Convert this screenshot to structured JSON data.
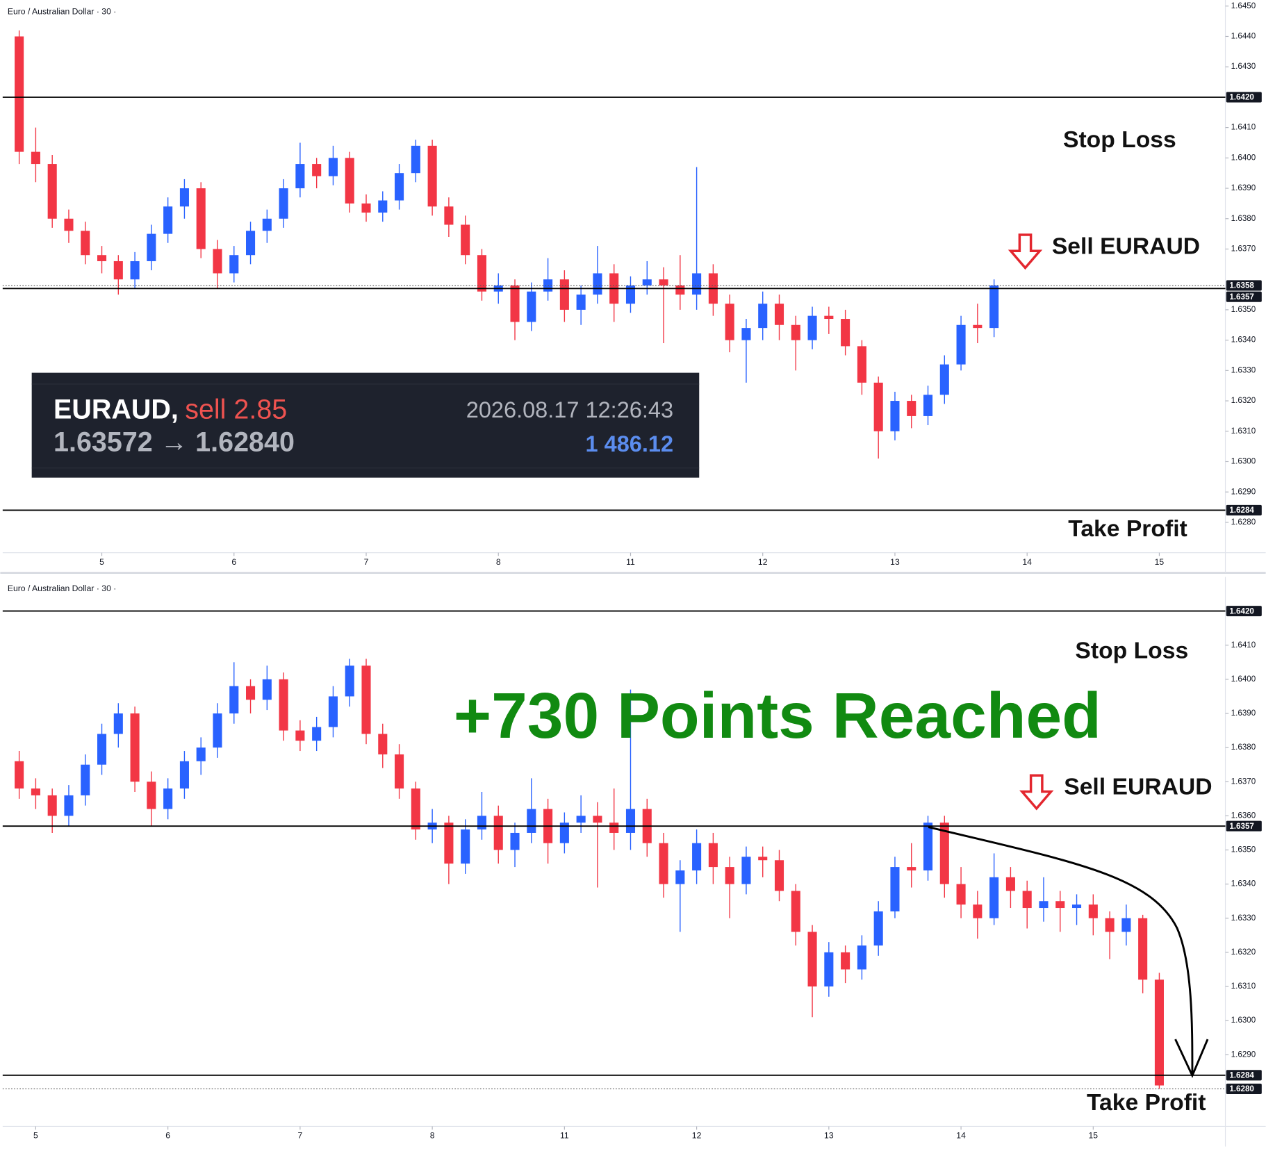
{
  "chart_data": [
    {
      "type": "candlestick",
      "title": "Euro / Australian Dollar · 30 ·",
      "up_color": "#2962ff",
      "down_color": "#f23645",
      "grid": false,
      "xlim": [
        0,
        74
      ],
      "ylim": [
        1.627,
        1.6452
      ],
      "xticks": [
        {
          "value": 6,
          "label": "5"
        },
        {
          "value": 14,
          "label": "6"
        },
        {
          "value": 22,
          "label": "7"
        },
        {
          "value": 30,
          "label": "8"
        },
        {
          "value": 38,
          "label": "11"
        },
        {
          "value": 46,
          "label": "12"
        },
        {
          "value": 54,
          "label": "13"
        },
        {
          "value": 62,
          "label": "14"
        },
        {
          "value": 70,
          "label": "15"
        }
      ],
      "yticks": [
        {
          "value": 1.645,
          "label": "1.6450"
        },
        {
          "value": 1.644,
          "label": "1.6440"
        },
        {
          "value": 1.643,
          "label": "1.6430"
        },
        {
          "value": 1.641,
          "label": "1.6410"
        },
        {
          "value": 1.64,
          "label": "1.6400"
        },
        {
          "value": 1.639,
          "label": "1.6390"
        },
        {
          "value": 1.638,
          "label": "1.6380"
        },
        {
          "value": 1.637,
          "label": "1.6370"
        },
        {
          "value": 1.635,
          "label": "1.6350"
        },
        {
          "value": 1.634,
          "label": "1.6340"
        },
        {
          "value": 1.633,
          "label": "1.6330"
        },
        {
          "value": 1.632,
          "label": "1.6320"
        },
        {
          "value": 1.631,
          "label": "1.6310"
        },
        {
          "value": 1.63,
          "label": "1.6300"
        },
        {
          "value": 1.629,
          "label": "1.6290"
        },
        {
          "value": 1.628,
          "label": "1.6280"
        }
      ],
      "levels": [
        {
          "value": 1.642,
          "label": "1.6420",
          "style": "solid"
        },
        {
          "value": 1.6358,
          "label": "1.6358",
          "style": "dotted"
        },
        {
          "value": 1.6357,
          "label": "1.6357",
          "style": "solid"
        },
        {
          "value": 1.6284,
          "label": "1.6284",
          "style": "solid"
        }
      ],
      "stop_loss_label": "Stop Loss",
      "sell_label": "Sell EURAUD",
      "take_profit_label": "Take Profit",
      "trade_panel": {
        "symbol": "EURAUD,",
        "side": "sell 2.85",
        "time": "2026.08.17 12:26:43",
        "prices": "1.63572 → 1.62840",
        "profit": "1 486.12"
      },
      "x": [
        1,
        2,
        3,
        4,
        5,
        6,
        7,
        8,
        9,
        10,
        11,
        12,
        13,
        14,
        15,
        16,
        17,
        18,
        19,
        20,
        21,
        22,
        23,
        24,
        25,
        26,
        27,
        28,
        29,
        30,
        31,
        32,
        33,
        34,
        35,
        36,
        37,
        38,
        39,
        40,
        41,
        42,
        43,
        44,
        45,
        46,
        47,
        48,
        49,
        50,
        51,
        52,
        53,
        54,
        55,
        56,
        57,
        58,
        59,
        60
      ],
      "open": [
        1.644,
        1.6402,
        1.6398,
        1.638,
        1.6376,
        1.6368,
        1.6366,
        1.636,
        1.6366,
        1.6375,
        1.6384,
        1.639,
        1.637,
        1.6362,
        1.6368,
        1.6376,
        1.638,
        1.639,
        1.6398,
        1.6394,
        1.64,
        1.6385,
        1.6382,
        1.6386,
        1.6395,
        1.6404,
        1.6384,
        1.6378,
        1.6368,
        1.6356,
        1.6358,
        1.6346,
        1.6356,
        1.636,
        1.635,
        1.6355,
        1.6362,
        1.6352,
        1.6358,
        1.636,
        1.6358,
        1.6355,
        1.6362,
        1.6352,
        1.634,
        1.6344,
        1.6352,
        1.6345,
        1.634,
        1.6348,
        1.6347,
        1.6338,
        1.6326,
        1.631,
        1.632,
        1.6315,
        1.6322,
        1.6332,
        1.6345,
        1.6344
      ],
      "high": [
        1.6442,
        1.641,
        1.6401,
        1.6383,
        1.6379,
        1.6371,
        1.6368,
        1.6369,
        1.6378,
        1.6387,
        1.6393,
        1.6392,
        1.6373,
        1.6371,
        1.6379,
        1.6383,
        1.6393,
        1.6405,
        1.64,
        1.6404,
        1.6402,
        1.6388,
        1.6389,
        1.6398,
        1.6406,
        1.6406,
        1.6387,
        1.6381,
        1.637,
        1.6362,
        1.636,
        1.6359,
        1.6367,
        1.6363,
        1.6358,
        1.6371,
        1.6365,
        1.6361,
        1.6366,
        1.6364,
        1.6368,
        1.6397,
        1.6365,
        1.6355,
        1.6347,
        1.6356,
        1.6355,
        1.6348,
        1.6351,
        1.6351,
        1.635,
        1.634,
        1.6328,
        1.6323,
        1.6322,
        1.6325,
        1.6335,
        1.6348,
        1.6352,
        1.636
      ],
      "low": [
        1.6398,
        1.6392,
        1.6377,
        1.6372,
        1.6365,
        1.6362,
        1.6355,
        1.6357,
        1.6363,
        1.6372,
        1.638,
        1.6367,
        1.6357,
        1.6359,
        1.6365,
        1.6372,
        1.6377,
        1.6387,
        1.639,
        1.6391,
        1.6382,
        1.6379,
        1.6379,
        1.6383,
        1.6392,
        1.6381,
        1.6374,
        1.6365,
        1.6353,
        1.6352,
        1.634,
        1.6343,
        1.6353,
        1.6346,
        1.6345,
        1.6352,
        1.6346,
        1.6349,
        1.6355,
        1.6339,
        1.635,
        1.635,
        1.6348,
        1.6336,
        1.6326,
        1.634,
        1.634,
        1.633,
        1.6337,
        1.6342,
        1.6335,
        1.6322,
        1.6301,
        1.6307,
        1.6311,
        1.6312,
        1.6319,
        1.633,
        1.6339,
        1.6341
      ],
      "close": [
        1.6402,
        1.6398,
        1.638,
        1.6376,
        1.6368,
        1.6366,
        1.636,
        1.6366,
        1.6375,
        1.6384,
        1.639,
        1.637,
        1.6362,
        1.6368,
        1.6376,
        1.638,
        1.639,
        1.6398,
        1.6394,
        1.64,
        1.6385,
        1.6382,
        1.6386,
        1.6395,
        1.6404,
        1.6384,
        1.6378,
        1.6368,
        1.6356,
        1.6358,
        1.6346,
        1.6356,
        1.636,
        1.635,
        1.6355,
        1.6362,
        1.6352,
        1.6358,
        1.636,
        1.6358,
        1.6355,
        1.6362,
        1.6352,
        1.634,
        1.6344,
        1.6352,
        1.6345,
        1.634,
        1.6348,
        1.6347,
        1.6338,
        1.6326,
        1.631,
        1.632,
        1.6315,
        1.6322,
        1.6332,
        1.6345,
        1.6344,
        1.6358
      ]
    },
    {
      "type": "candlestick",
      "title": "Euro / Australian Dollar · 30 ·",
      "up_color": "#2962ff",
      "down_color": "#f23645",
      "grid": false,
      "xlim": [
        0,
        74
      ],
      "ylim": [
        1.6269,
        1.643
      ],
      "xticks": [
        {
          "value": 2,
          "label": "5"
        },
        {
          "value": 10,
          "label": "6"
        },
        {
          "value": 18,
          "label": "7"
        },
        {
          "value": 26,
          "label": "8"
        },
        {
          "value": 34,
          "label": "11"
        },
        {
          "value": 42,
          "label": "12"
        },
        {
          "value": 50,
          "label": "13"
        },
        {
          "value": 58,
          "label": "14"
        },
        {
          "value": 66,
          "label": "15"
        }
      ],
      "yticks": [
        {
          "value": 1.641,
          "label": "1.6410"
        },
        {
          "value": 1.64,
          "label": "1.6400"
        },
        {
          "value": 1.639,
          "label": "1.6390"
        },
        {
          "value": 1.638,
          "label": "1.6380"
        },
        {
          "value": 1.637,
          "label": "1.6370"
        },
        {
          "value": 1.636,
          "label": "1.6360"
        },
        {
          "value": 1.635,
          "label": "1.6350"
        },
        {
          "value": 1.634,
          "label": "1.6340"
        },
        {
          "value": 1.633,
          "label": "1.6330"
        },
        {
          "value": 1.632,
          "label": "1.6320"
        },
        {
          "value": 1.631,
          "label": "1.6310"
        },
        {
          "value": 1.63,
          "label": "1.6300"
        },
        {
          "value": 1.629,
          "label": "1.6290"
        }
      ],
      "levels": [
        {
          "value": 1.642,
          "label": "1.6420",
          "style": "solid"
        },
        {
          "value": 1.6357,
          "label": "1.6357",
          "style": "solid"
        },
        {
          "value": 1.6284,
          "label": "1.6284",
          "style": "solid"
        },
        {
          "value": 1.628,
          "label": "1.6280",
          "style": "dotted"
        }
      ],
      "stop_loss_label": "Stop Loss",
      "sell_label": "Sell EURAUD",
      "take_profit_label": "Take Profit",
      "headline": "+730 Points Reached",
      "headline_color": "#118a11",
      "x": [
        1,
        2,
        3,
        4,
        5,
        6,
        7,
        8,
        9,
        10,
        11,
        12,
        13,
        14,
        15,
        16,
        17,
        18,
        19,
        20,
        21,
        22,
        23,
        24,
        25,
        26,
        27,
        28,
        29,
        30,
        31,
        32,
        33,
        34,
        35,
        36,
        37,
        38,
        39,
        40,
        41,
        42,
        43,
        44,
        45,
        46,
        47,
        48,
        49,
        50,
        51,
        52,
        53,
        54,
        55,
        56,
        57,
        58,
        59,
        60,
        61,
        62,
        63,
        64,
        65,
        66,
        67,
        68,
        69,
        70
      ],
      "open": [
        1.6376,
        1.6368,
        1.6366,
        1.636,
        1.6366,
        1.6375,
        1.6384,
        1.639,
        1.637,
        1.6362,
        1.6368,
        1.6376,
        1.638,
        1.639,
        1.6398,
        1.6394,
        1.64,
        1.6385,
        1.6382,
        1.6386,
        1.6395,
        1.6404,
        1.6384,
        1.6378,
        1.6368,
        1.6356,
        1.6358,
        1.6346,
        1.6356,
        1.636,
        1.635,
        1.6355,
        1.6362,
        1.6352,
        1.6358,
        1.636,
        1.6358,
        1.6355,
        1.6362,
        1.6352,
        1.634,
        1.6344,
        1.6352,
        1.6345,
        1.634,
        1.6348,
        1.6347,
        1.6338,
        1.6326,
        1.631,
        1.632,
        1.6315,
        1.6322,
        1.6332,
        1.6345,
        1.6344,
        1.6358,
        1.634,
        1.6334,
        1.633,
        1.6342,
        1.6338,
        1.6333,
        1.6335,
        1.6333,
        1.6334,
        1.633,
        1.6326,
        1.633,
        1.6312
      ],
      "high": [
        1.6379,
        1.6371,
        1.6368,
        1.6369,
        1.6378,
        1.6387,
        1.6393,
        1.6392,
        1.6373,
        1.6371,
        1.6379,
        1.6383,
        1.6393,
        1.6405,
        1.64,
        1.6404,
        1.6402,
        1.6388,
        1.6389,
        1.6398,
        1.6406,
        1.6406,
        1.6387,
        1.6381,
        1.637,
        1.6362,
        1.636,
        1.6359,
        1.6367,
        1.6363,
        1.6358,
        1.6371,
        1.6365,
        1.6361,
        1.6366,
        1.6364,
        1.6368,
        1.6397,
        1.6365,
        1.6355,
        1.6347,
        1.6356,
        1.6355,
        1.6348,
        1.6351,
        1.6351,
        1.635,
        1.634,
        1.6328,
        1.6323,
        1.6322,
        1.6325,
        1.6335,
        1.6348,
        1.6352,
        1.636,
        1.636,
        1.6345,
        1.6338,
        1.6349,
        1.6345,
        1.6341,
        1.6342,
        1.6338,
        1.6337,
        1.6337,
        1.6332,
        1.6334,
        1.6331,
        1.6314
      ],
      "low": [
        1.6365,
        1.6362,
        1.6355,
        1.6357,
        1.6363,
        1.6372,
        1.638,
        1.6367,
        1.6357,
        1.6359,
        1.6365,
        1.6372,
        1.6377,
        1.6387,
        1.639,
        1.6391,
        1.6382,
        1.6379,
        1.6379,
        1.6383,
        1.6392,
        1.6381,
        1.6374,
        1.6365,
        1.6353,
        1.6352,
        1.634,
        1.6343,
        1.6353,
        1.6346,
        1.6345,
        1.6352,
        1.6346,
        1.6349,
        1.6355,
        1.6339,
        1.635,
        1.635,
        1.6348,
        1.6336,
        1.6326,
        1.634,
        1.634,
        1.633,
        1.6337,
        1.6342,
        1.6335,
        1.6322,
        1.6301,
        1.6307,
        1.6311,
        1.6312,
        1.6319,
        1.633,
        1.6339,
        1.6341,
        1.6336,
        1.633,
        1.6324,
        1.6328,
        1.6333,
        1.6327,
        1.6329,
        1.6326,
        1.6328,
        1.6325,
        1.6318,
        1.6322,
        1.6308,
        1.628
      ],
      "close": [
        1.6368,
        1.6366,
        1.636,
        1.6366,
        1.6375,
        1.6384,
        1.639,
        1.637,
        1.6362,
        1.6368,
        1.6376,
        1.638,
        1.639,
        1.6398,
        1.6394,
        1.64,
        1.6385,
        1.6382,
        1.6386,
        1.6395,
        1.6404,
        1.6384,
        1.6378,
        1.6368,
        1.6356,
        1.6358,
        1.6346,
        1.6356,
        1.636,
        1.635,
        1.6355,
        1.6362,
        1.6352,
        1.6358,
        1.636,
        1.6358,
        1.6355,
        1.6362,
        1.6352,
        1.634,
        1.6344,
        1.6352,
        1.6345,
        1.634,
        1.6348,
        1.6347,
        1.6338,
        1.6326,
        1.631,
        1.632,
        1.6315,
        1.6322,
        1.6332,
        1.6345,
        1.6344,
        1.6358,
        1.634,
        1.6334,
        1.633,
        1.6342,
        1.6338,
        1.6333,
        1.6335,
        1.6333,
        1.6334,
        1.633,
        1.6326,
        1.633,
        1.6312,
        1.6281
      ]
    }
  ]
}
